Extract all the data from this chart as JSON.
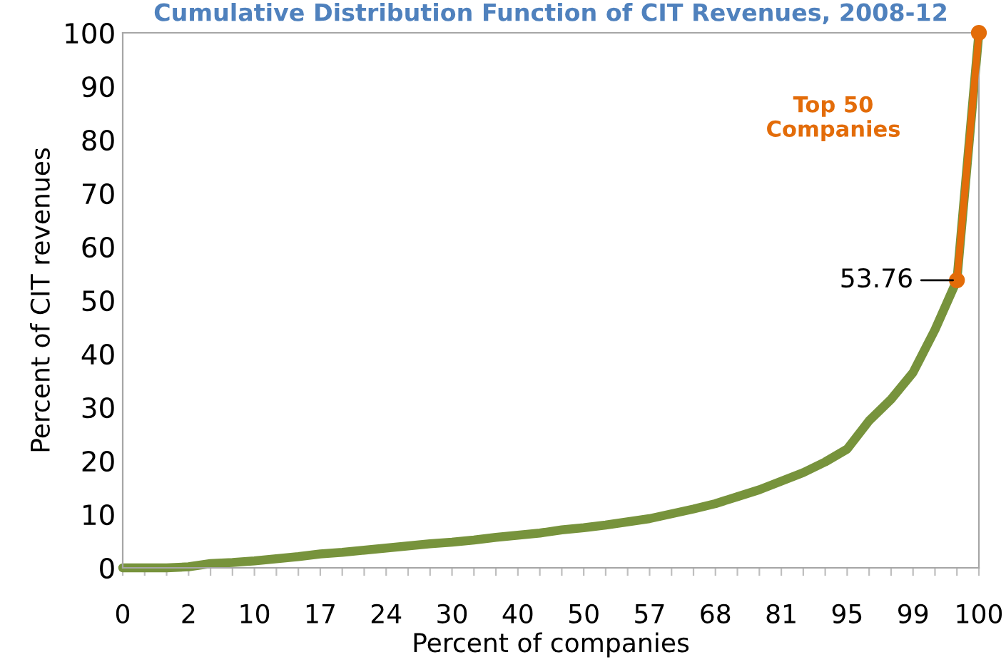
{
  "chart_data": {
    "type": "line",
    "title": "Cumulative Distribution Function of CIT Revenues, 2008-12",
    "xlabel": "Percent of companies",
    "ylabel": "Percent of CIT revenues",
    "categories": [
      "0",
      null,
      null,
      "2",
      null,
      null,
      "10",
      null,
      null,
      "17",
      null,
      null,
      "24",
      null,
      null,
      "30",
      null,
      null,
      "40",
      null,
      null,
      "50",
      null,
      null,
      "57",
      null,
      null,
      "68",
      null,
      null,
      "81",
      null,
      null,
      "95",
      null,
      null,
      "99",
      null,
      null,
      "100"
    ],
    "series": [
      {
        "color": "#77933c",
        "values": [
          0,
          0,
          0,
          0.2,
          0.8,
          1.0,
          1.3,
          1.7,
          2.1,
          2.6,
          2.9,
          3.3,
          3.7,
          4.1,
          4.5,
          4.8,
          5.2,
          5.7,
          6.1,
          6.5,
          7.1,
          7.5,
          8.0,
          8.6,
          9.2,
          10.1,
          11.0,
          12.0,
          13.3,
          14.6,
          16.2,
          17.8,
          19.8,
          22.2,
          27.5,
          31.5,
          36.5,
          44.5,
          53.76,
          100
        ]
      },
      {
        "color": "#e36c09",
        "marker": "circle",
        "values": [
          null,
          null,
          null,
          null,
          null,
          null,
          null,
          null,
          null,
          null,
          null,
          null,
          null,
          null,
          null,
          null,
          null,
          null,
          null,
          null,
          null,
          null,
          null,
          null,
          null,
          null,
          null,
          null,
          null,
          null,
          null,
          null,
          null,
          null,
          null,
          null,
          null,
          null,
          53.76,
          100
        ],
        "value_labels": [
          null,
          null,
          null,
          null,
          null,
          null,
          null,
          null,
          null,
          null,
          null,
          null,
          null,
          null,
          null,
          null,
          null,
          null,
          null,
          null,
          null,
          null,
          null,
          null,
          null,
          null,
          null,
          null,
          null,
          null,
          null,
          null,
          null,
          null,
          null,
          null,
          null,
          null,
          "53.76",
          null
        ]
      }
    ],
    "annotations": [
      "Top 50\nCompanies"
    ],
    "ylim": [
      0,
      100
    ],
    "yticks": [
      0,
      10,
      20,
      30,
      40,
      50,
      60,
      70,
      80,
      90,
      100
    ],
    "grid": false
  }
}
